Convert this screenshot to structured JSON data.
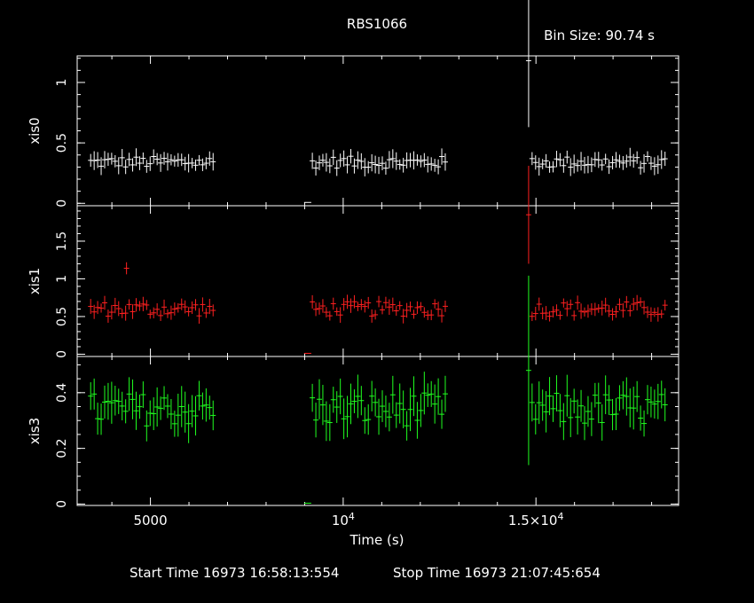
{
  "title": "RBS1066",
  "bin_size": "Bin Size: 90.74 s",
  "footer": {
    "start": "Start Time 16973 16:58:13:554",
    "stop": "Stop Time 16973 21:07:45:654"
  },
  "chart_data": {
    "type": "scatter",
    "xlabel": "Time (s)",
    "xlim": [
      3100,
      18700
    ],
    "x_ticks": [
      {
        "value": 5000,
        "label": "5000",
        "sup": ""
      },
      {
        "value": 10000,
        "label": "10",
        "sup": "4"
      },
      {
        "value": 15000,
        "label": "1.5×10",
        "sup": "4"
      }
    ],
    "x_minor_step": 1000,
    "gaps": [
      [
        6700,
        9150
      ],
      [
        12750,
        14850
      ]
    ],
    "colors": {
      "xis0": "#ffffff",
      "xis1": "#ff2020",
      "xis3": "#20ff20",
      "axes": "#ffffff"
    },
    "panels": [
      {
        "name": "xis0",
        "ylabel": "xis0",
        "ylim": [
          -0.02,
          1.22
        ],
        "y_ticks": [
          {
            "value": 0,
            "label": "0"
          },
          {
            "value": 0.5,
            "label": "0.5"
          },
          {
            "value": 1,
            "label": "1"
          }
        ],
        "y_minor_step": 0.1,
        "base": 0.34,
        "amp": 0.05,
        "err": 0.06,
        "spikes": [
          {
            "x": 14810,
            "y": 1.18,
            "err": 0.55
          }
        ],
        "stray": [
          {
            "x": 9080,
            "y": 0.0,
            "err": 0.0
          }
        ]
      },
      {
        "name": "xis1",
        "ylabel": "xis1",
        "ylim": [
          -0.03,
          1.97
        ],
        "y_ticks": [
          {
            "value": 0,
            "label": "0"
          },
          {
            "value": 0.5,
            "label": "0.5"
          },
          {
            "value": 1,
            "label": "1"
          },
          {
            "value": 1.5,
            "label": "1.5"
          }
        ],
        "y_minor_step": 0.1,
        "base": 0.6,
        "amp": 0.1,
        "err": 0.08,
        "spikes": [
          {
            "x": 4380,
            "y": 1.14,
            "err": 0.08
          },
          {
            "x": 14810,
            "y": 1.85,
            "err": 0.65
          }
        ],
        "stray": [
          {
            "x": 9080,
            "y": 0.0,
            "err": 0.0
          }
        ]
      },
      {
        "name": "xis3",
        "ylabel": "xis3",
        "ylim": [
          -0.005,
          0.53
        ],
        "y_ticks": [
          {
            "value": 0,
            "label": "0"
          },
          {
            "value": 0.2,
            "label": "0.2"
          },
          {
            "value": 0.4,
            "label": "0.4"
          }
        ],
        "y_minor_step": 0.05,
        "base": 0.34,
        "amp": 0.06,
        "err": 0.06,
        "spikes": [
          {
            "x": 14810,
            "y": 0.48,
            "err": 0.34
          }
        ],
        "stray": [
          {
            "x": 9080,
            "y": 0.0,
            "err": 0.0
          }
        ]
      }
    ],
    "segments": [
      {
        "start": 3450,
        "end": 6650,
        "step": 90.74
      },
      {
        "start": 9200,
        "end": 12700,
        "step": 90.74
      },
      {
        "start": 14900,
        "end": 18400,
        "step": 90.74
      }
    ]
  }
}
